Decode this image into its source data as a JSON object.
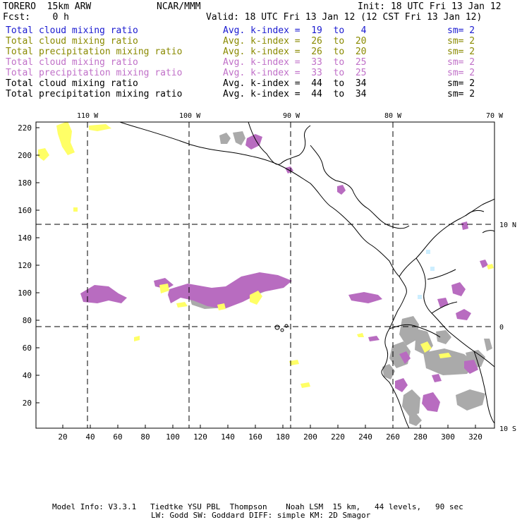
{
  "header": {
    "model": "TORERO  15km ARW",
    "org": "NCAR/MMM",
    "init": "Init: 18 UTC Fri 13 Jan 12",
    "fcst": "Fcst:    0 h",
    "valid": "Valid: 18 UTC Fri 13 Jan 12 (12 CST Fri 13 Jan 12)"
  },
  "legend_rows": [
    {
      "field": "Total cloud mixing ratio",
      "kidx": "Avg. k-index =  19  to   4",
      "sm": "sm= 2",
      "color": "#1a1ad0"
    },
    {
      "field": "Total cloud mixing ratio",
      "kidx": "Avg. k-index =  26  to  20",
      "sm": "sm= 2",
      "color": "#8a8a00"
    },
    {
      "field": "Total precipitation mixing ratio",
      "kidx": "Avg. k-index =  26  to  20",
      "sm": "sm= 2",
      "color": "#8a8a00"
    },
    {
      "field": "Total cloud mixing ratio",
      "kidx": "Avg. k-index =  33  to  25",
      "sm": "sm= 2",
      "color": "#c070c8"
    },
    {
      "field": "Total precipitation mixing ratio",
      "kidx": "Avg. k-index =  33  to  25",
      "sm": "sm= 2",
      "color": "#c070c8"
    },
    {
      "field": "Total cloud mixing ratio",
      "kidx": "Avg. k-index =  44  to  34",
      "sm": "sm= 2",
      "color": "#000000"
    },
    {
      "field": "Total precipitation mixing ratio",
      "kidx": "Avg. k-index =  44  to  34",
      "sm": "sm= 2",
      "color": "#000000"
    }
  ],
  "map": {
    "lon_labels": [
      "110 W",
      "100 W",
      "90 W",
      "80 W",
      "70 W"
    ],
    "lat_labels": [
      "10 N",
      "0",
      "10 S"
    ],
    "x_ticks": [
      "20",
      "40",
      "60",
      "80",
      "100",
      "120",
      "140",
      "160",
      "180",
      "200",
      "220",
      "240",
      "260",
      "280",
      "300",
      "320"
    ],
    "y_ticks": [
      "20",
      "40",
      "60",
      "80",
      "100",
      "120",
      "140",
      "160",
      "180",
      "200",
      "220"
    ],
    "colors": {
      "yellow": "#ffff66",
      "magenta": "#b86cc0",
      "gray": "#aaaaaa",
      "lightblue": "#cceeff",
      "coast": "#000000",
      "grid": "#000000"
    }
  },
  "footer": {
    "line1": "Model Info: V3.3.1   Tiedtke YSU PBL  Thompson    Noah LSM  15 km,   44 levels,   90 sec",
    "line2": "LW: Godd SW: Goddard DIFF: simple KM: 2D Smagor"
  }
}
